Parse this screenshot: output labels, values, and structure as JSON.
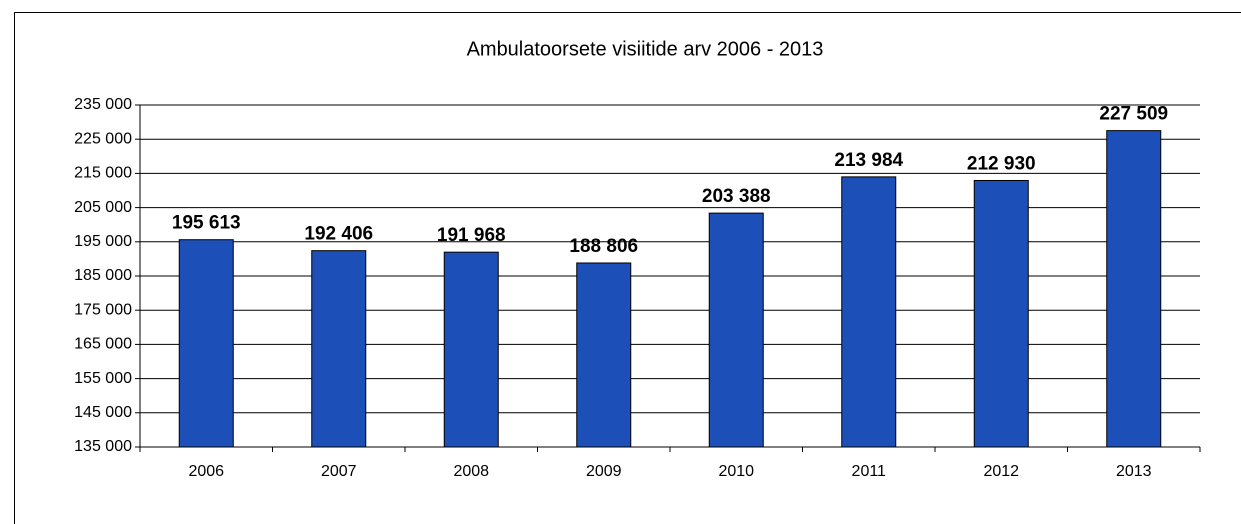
{
  "chart_data": {
    "type": "bar",
    "title": "Ambulatoorsete visiitide arv 2006 - 2013",
    "categories": [
      "2006",
      "2007",
      "2008",
      "2009",
      "2010",
      "2011",
      "2012",
      "2013"
    ],
    "values": [
      195613,
      192406,
      191968,
      188806,
      203388,
      213984,
      212930,
      227509
    ],
    "value_labels": [
      "195 613",
      "192 406",
      "191 968",
      "188 806",
      "203 388",
      "213 984",
      "212 930",
      "227 509"
    ],
    "color": "#1c4fb8",
    "ylim": [
      135000,
      235000
    ],
    "yticks": [
      {
        "value": 135000,
        "label": "135 000"
      },
      {
        "value": 145000,
        "label": "145 000"
      },
      {
        "value": 155000,
        "label": "155 000"
      },
      {
        "value": 165000,
        "label": "165 000"
      },
      {
        "value": 175000,
        "label": "175 000"
      },
      {
        "value": 185000,
        "label": "185 000"
      },
      {
        "value": 195000,
        "label": "195 000"
      },
      {
        "value": 205000,
        "label": "205 000"
      },
      {
        "value": 215000,
        "label": "215 000"
      },
      {
        "value": 225000,
        "label": "225 000"
      },
      {
        "value": 235000,
        "label": "235 000"
      }
    ],
    "grid": true
  }
}
